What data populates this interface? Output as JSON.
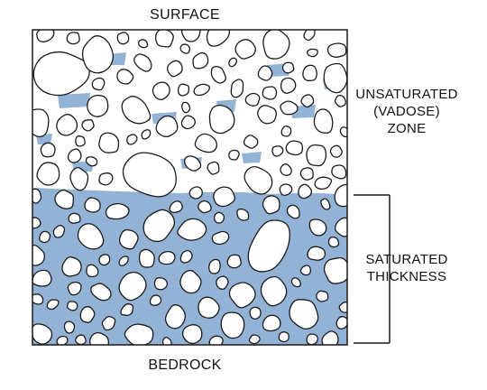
{
  "labels": {
    "surface": "SURFACE",
    "bedrock": "BEDROCK",
    "unsaturated_line1": "UNSATURATED",
    "unsaturated_line2": "(VADOSE)",
    "unsaturated_line3": "ZONE",
    "saturated_line1": "SATURATED",
    "saturated_line2": "THICKNESS"
  },
  "colors": {
    "water": "#93b3d6",
    "grain_fill": "#ffffff",
    "outline": "#1a1a1a"
  }
}
